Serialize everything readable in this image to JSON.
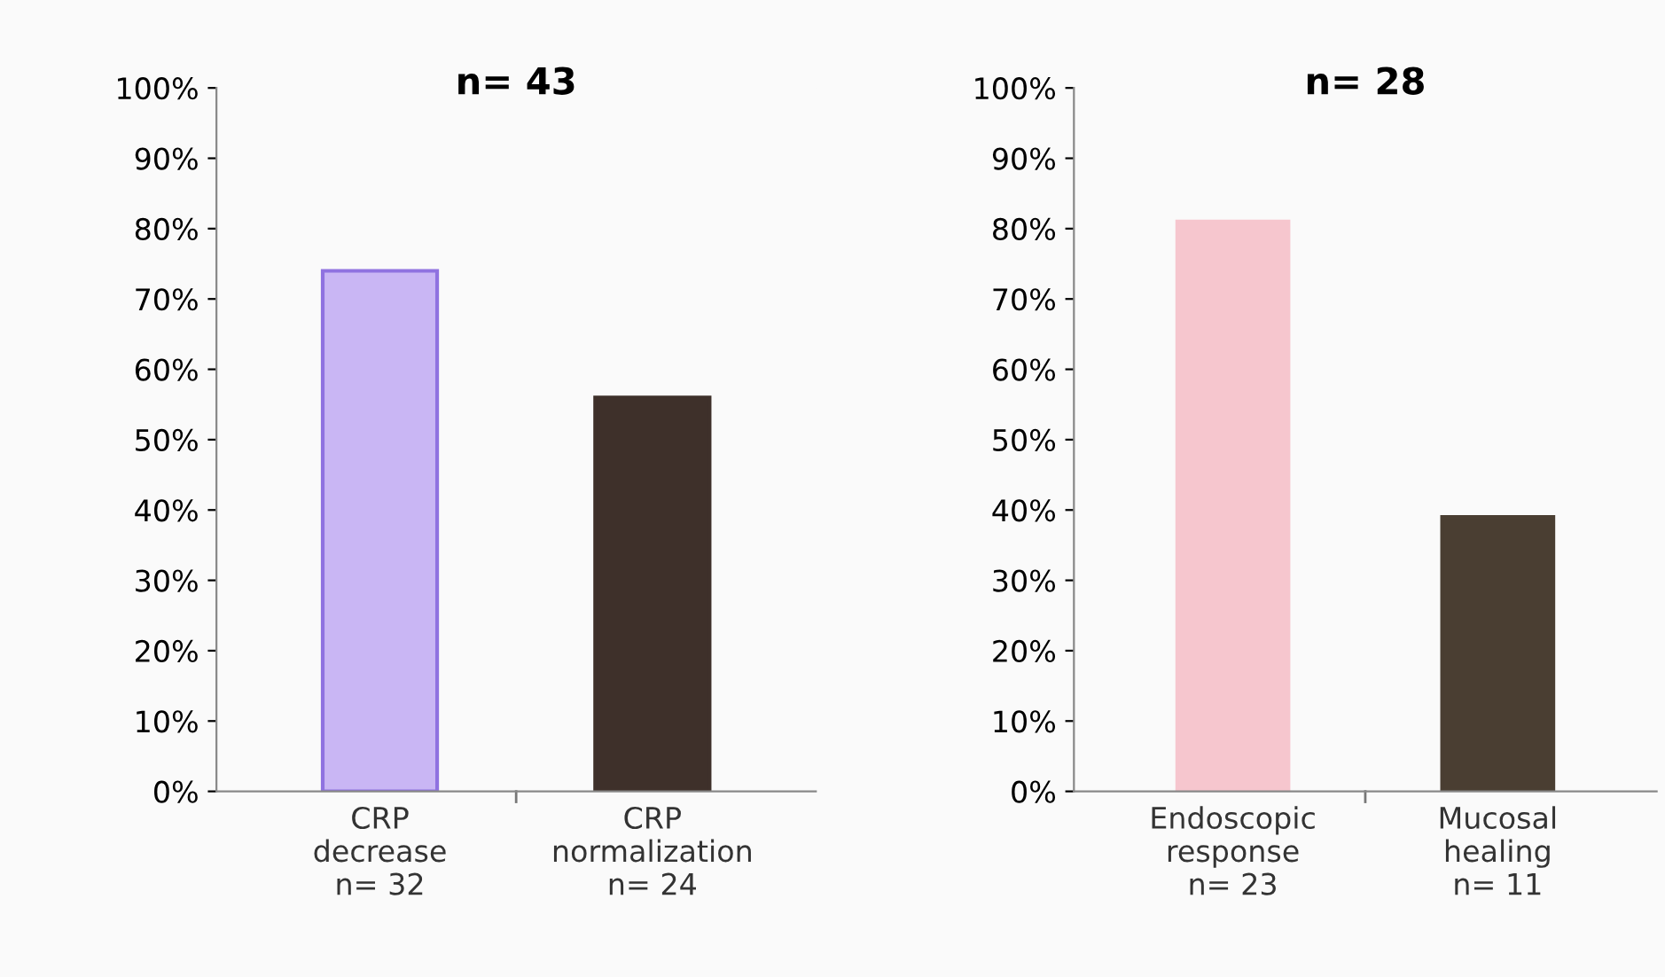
{
  "chart_data": [
    {
      "type": "bar",
      "title": "n= 43",
      "categories": [
        "CRP\ndecrease\nn= 32",
        "CRP\nnormalization\nn= 24"
      ],
      "colors": [
        "#c9b6f4",
        "#3e302a"
      ],
      "values": [
        74,
        56
      ],
      "ylim": [
        0,
        100
      ],
      "yticks": [
        {
          "value": 0,
          "label": "0%"
        },
        {
          "value": 10,
          "label": "10%"
        },
        {
          "value": 20,
          "label": "20%"
        },
        {
          "value": 30,
          "label": "30%"
        },
        {
          "value": 40,
          "label": "40%"
        },
        {
          "value": 50,
          "label": "50%"
        },
        {
          "value": 60,
          "label": "60%"
        },
        {
          "value": 70,
          "label": "70%"
        },
        {
          "value": 80,
          "label": "80%"
        },
        {
          "value": 90,
          "label": "90%"
        },
        {
          "value": 100,
          "label": "100%"
        }
      ],
      "grid": false
    },
    {
      "type": "bar",
      "title": "n= 28",
      "categories": [
        "Endoscopic\nresponse\nn= 23",
        "Mucosal\nhealing\nn= 11"
      ],
      "colors": [
        "#f6c6ce",
        "#4a3e32"
      ],
      "values": [
        81,
        39
      ],
      "ylim": [
        0,
        100
      ],
      "yticks": [
        {
          "value": 0,
          "label": "0%"
        },
        {
          "value": 10,
          "label": "10%"
        },
        {
          "value": 20,
          "label": "20%"
        },
        {
          "value": 30,
          "label": "30%"
        },
        {
          "value": 40,
          "label": "40%"
        },
        {
          "value": 50,
          "label": "50%"
        },
        {
          "value": 60,
          "label": "60%"
        },
        {
          "value": 70,
          "label": "70%"
        },
        {
          "value": 80,
          "label": "80%"
        },
        {
          "value": 90,
          "label": "90%"
        },
        {
          "value": 100,
          "label": "100%"
        }
      ],
      "grid": false
    }
  ]
}
